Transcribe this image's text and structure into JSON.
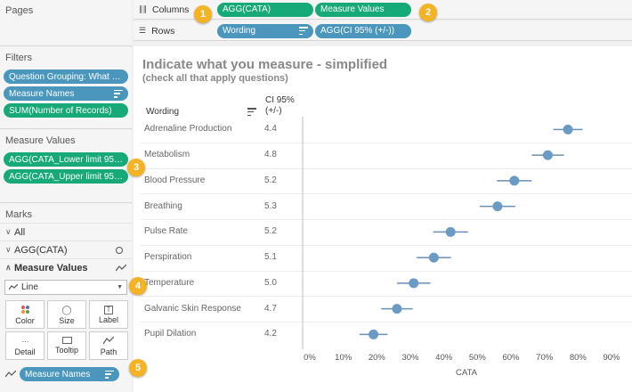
{
  "sidebar": {
    "pages_title": "Pages",
    "filters_title": "Filters",
    "filters": [
      "Question Grouping: What do...",
      "Measure Names",
      "SUM(Number of Records)"
    ],
    "measure_values_title": "Measure Values",
    "measure_values": [
      "AGG(CATA_Lower limit 95%)",
      "AGG(CATA_Upper limit 95%)"
    ],
    "marks_title": "Marks",
    "marks_all": "All",
    "marks_agg": "AGG(CATA)",
    "marks_measure_values": "Measure Values",
    "mark_type": "Line",
    "mark_buttons": [
      "Color",
      "Size",
      "Label",
      "Detail",
      "Tooltip",
      "Path"
    ],
    "detail_pill": "Measure Names"
  },
  "shelves": {
    "columns_label": "Columns",
    "columns_pills": [
      "AGG(CATA)",
      "Measure Values"
    ],
    "rows_label": "Rows",
    "rows_pills": [
      "Wording",
      "AGG(CI 95% (+/-))"
    ]
  },
  "badges": [
    "1",
    "2",
    "3",
    "4",
    "5"
  ],
  "view": {
    "title": "Indicate what you measure  - simplified",
    "subtitle": "(check all that apply questions)",
    "col_wording": "Wording",
    "col_ci_line1": "CI 95%",
    "col_ci_line2": "(+/-)",
    "axis_title": "CATA"
  },
  "chart_data": {
    "type": "scatter",
    "xlabel": "CATA",
    "xlim": [
      0,
      0.9
    ],
    "x_ticks": [
      "0%",
      "10%",
      "20%",
      "30%",
      "40%",
      "50%",
      "60%",
      "70%",
      "80%",
      "90%"
    ],
    "rows": [
      {
        "label": "Adrenaline Production",
        "ci": "4.4",
        "value": 0.77
      },
      {
        "label": "Metabolism",
        "ci": "4.8",
        "value": 0.71
      },
      {
        "label": "Blood Pressure",
        "ci": "5.2",
        "value": 0.61
      },
      {
        "label": "Breathing",
        "ci": "5.3",
        "value": 0.56
      },
      {
        "label": "Pulse Rate",
        "ci": "5.2",
        "value": 0.42
      },
      {
        "label": "Perspiration",
        "ci": "5.1",
        "value": 0.37
      },
      {
        "label": "Temperature",
        "ci": "5.0",
        "value": 0.31
      },
      {
        "label": "Galvanic Skin Response",
        "ci": "4.7",
        "value": 0.26
      },
      {
        "label": "Pupil Dilation",
        "ci": "4.2",
        "value": 0.19
      }
    ],
    "mark_color": "#6b9ac4"
  },
  "colors": {
    "blue_pill": "#4a96bc",
    "green_pill": "#17a978",
    "badge": "#f4b324"
  }
}
